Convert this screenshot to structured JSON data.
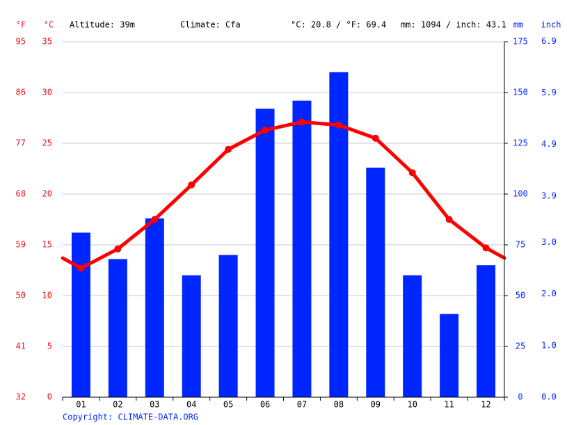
{
  "chart_data": {
    "type": "climate",
    "header": [
      "Altitude: 39m",
      "Climate: Cfa",
      "°C: 20.8 / °F: 69.4",
      "mm: 1094 / inch: 43.1"
    ],
    "copyright": "Copyright: CLIMATE-DATA.ORG",
    "categories": [
      "01",
      "02",
      "03",
      "04",
      "05",
      "06",
      "07",
      "08",
      "09",
      "10",
      "11",
      "12"
    ],
    "y_axes": [
      {
        "label": "°F",
        "color": "#e8141c",
        "lim": [
          32,
          95
        ],
        "ticks": [
          32,
          41,
          50,
          59,
          68,
          77,
          86,
          95
        ]
      },
      {
        "label": "°C",
        "color": "#e8141c",
        "lim": [
          0,
          35
        ],
        "ticks": [
          0,
          5,
          10,
          15,
          20,
          25,
          30,
          35
        ]
      },
      {
        "label": "mm",
        "color": "#0026ff",
        "lim": [
          0,
          175
        ],
        "ticks": [
          0,
          25,
          50,
          75,
          100,
          125,
          150,
          175
        ]
      },
      {
        "label": "inch",
        "color": "#0026ff",
        "lim": [
          0,
          6.89
        ],
        "ticks": [
          {
            "value": 0,
            "label": "0.0"
          },
          {
            "value": 1,
            "label": "1.0"
          },
          {
            "value": 2,
            "label": "2.0"
          },
          {
            "value": 3,
            "label": "3.0"
          },
          3.9,
          4.9,
          5.9,
          6.9
        ]
      }
    ],
    "grid": true,
    "series": [
      {
        "name": "Precipitation",
        "type": "bar",
        "axis": 2,
        "color": "#0026ff",
        "values": [
          81,
          68,
          88,
          60,
          70,
          142,
          146,
          160,
          113,
          60,
          41,
          65
        ]
      },
      {
        "name": "Temperature",
        "type": "line",
        "axis": 1,
        "color": "#ff0000",
        "values": [
          12.7,
          14.6,
          17.5,
          20.9,
          24.4,
          26.3,
          27.1,
          26.8,
          25.5,
          22.1,
          17.5,
          14.7
        ]
      }
    ]
  }
}
